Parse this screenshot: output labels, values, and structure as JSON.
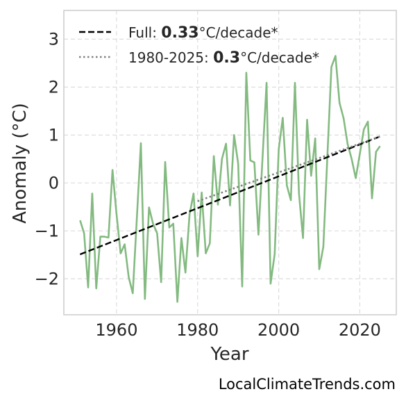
{
  "chart_data": {
    "type": "line",
    "xlabel": "Year",
    "ylabel": "Anomaly (°C)",
    "xlim": [
      1947,
      2029
    ],
    "ylim": [
      -2.75,
      3.6
    ],
    "xticks": [
      1960,
      1980,
      2000,
      2020
    ],
    "yticks": [
      -2,
      -1,
      0,
      1,
      2,
      3
    ],
    "grid": true,
    "legend_placement": "top-left",
    "series": [
      {
        "x": [
          1951,
          1952,
          1953,
          1954,
          1955,
          1956,
          1957,
          1958,
          1959,
          1960,
          1961,
          1962,
          1963,
          1964,
          1965,
          1966,
          1967,
          1968,
          1969,
          1970,
          1971,
          1972,
          1973,
          1974,
          1975,
          1976,
          1977,
          1978,
          1979,
          1980,
          1981,
          1982,
          1983,
          1984,
          1985,
          1986,
          1987,
          1988,
          1989,
          1990,
          1991,
          1992,
          1993,
          1994,
          1995,
          1996,
          1997,
          1998,
          1999,
          2000,
          2001,
          2002,
          2003,
          2004,
          2005,
          2006,
          2007,
          2008,
          2009,
          2010,
          2011,
          2012,
          2013,
          2014,
          2015,
          2016,
          2017,
          2018,
          2019,
          2020,
          2021,
          2022,
          2023,
          2024,
          2025
        ],
        "values": [
          -0.78,
          -1.05,
          -2.18,
          -0.22,
          -2.2,
          -1.12,
          -1.12,
          -1.14,
          0.27,
          -0.65,
          -1.47,
          -1.28,
          -1.97,
          -2.3,
          -0.76,
          0.83,
          -2.42,
          -0.51,
          -0.85,
          -1.05,
          -2.07,
          0.44,
          -0.93,
          -0.85,
          -2.48,
          -1.15,
          -1.87,
          -0.66,
          -0.22,
          -1.53,
          -0.2,
          -1.47,
          -1.26,
          0.56,
          -0.45,
          0.5,
          0.82,
          -0.47,
          1.0,
          0.4,
          -2.16,
          2.3,
          0.47,
          0.43,
          -1.08,
          0.5,
          2.09,
          -2.1,
          -1.48,
          0.7,
          1.36,
          -0.05,
          -0.36,
          2.09,
          -0.22,
          -1.15,
          1.32,
          0.15,
          0.93,
          -1.8,
          -1.33,
          0.55,
          2.42,
          2.65,
          1.67,
          1.35,
          0.81,
          0.5,
          0.1,
          0.6,
          1.12,
          1.28,
          -0.32,
          0.65,
          0.77
        ],
        "color": "#83ba80"
      },
      {
        "name": "Full: 0.33°C/decade*",
        "x": [
          1951,
          2025
        ],
        "values": [
          -1.49,
          0.97
        ],
        "style": "dashed",
        "color": "#000000"
      },
      {
        "name": "1980-2025: 0.3°C/decade*",
        "x": [
          1980,
          2025
        ],
        "values": [
          -0.38,
          0.97
        ],
        "style": "dotted",
        "color": "#808080"
      }
    ],
    "legend": [
      {
        "prefix": "Full: ",
        "value": "0.33",
        "suffix": "°C/decade*",
        "style": "dashed",
        "color": "#000000"
      },
      {
        "prefix": "1980-2025: ",
        "value": "0.3",
        "suffix": "°C/decade*",
        "style": "dotted",
        "color": "#808080"
      }
    ]
  },
  "watermark": "LocalClimateTrends.com",
  "colors": {
    "anomaly": "#83ba80",
    "full_trend": "#000000",
    "recent_trend": "#808080",
    "grid": "#dddddd",
    "frame": "#cccccc"
  }
}
